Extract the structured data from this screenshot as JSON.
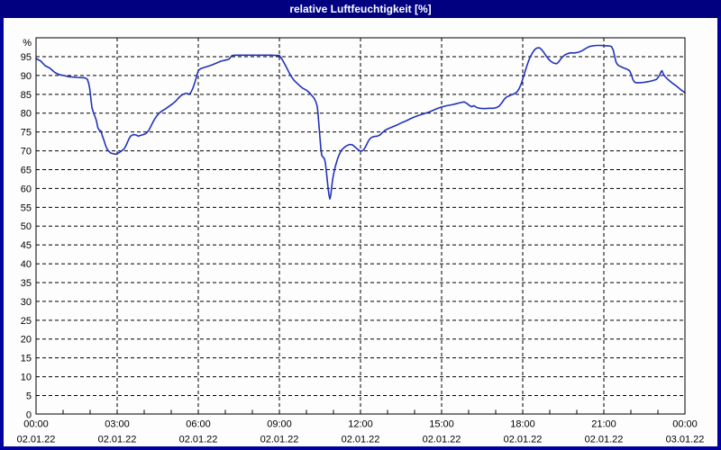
{
  "window": {
    "title": "relative Luftfeuchtigkeit [%]"
  },
  "colors": {
    "titlebar": "#000080",
    "frame": "#0000a0",
    "chart_background": "#fdfdfd",
    "plot_border": "#000000",
    "gridline": "#000000",
    "tick_label": "#000000",
    "title_text": "#ffffff",
    "series_line": "#2233bb"
  },
  "chart_data": {
    "type": "line",
    "title": "relative Luftfeuchtigkeit [%]",
    "ylabel": "%",
    "xlabel": "",
    "ylim": [
      0,
      100
    ],
    "grid": "dashed",
    "legend": "none",
    "y_ticks": [
      95,
      90,
      85,
      80,
      75,
      70,
      65,
      60,
      55,
      50,
      45,
      40,
      35,
      30,
      25,
      20,
      15,
      10,
      5,
      0
    ],
    "x_ticks": [
      {
        "time": "00:00",
        "date": "02.01.22"
      },
      {
        "time": "03:00",
        "date": "02.01.22"
      },
      {
        "time": "06:00",
        "date": "02.01.22"
      },
      {
        "time": "09:00",
        "date": "02.01.22"
      },
      {
        "time": "12:00",
        "date": "02.01.22"
      },
      {
        "time": "15:00",
        "date": "02.01.22"
      },
      {
        "time": "18:00",
        "date": "02.01.22"
      },
      {
        "time": "21:00",
        "date": "02.01.22"
      },
      {
        "time": "00:00",
        "date": "03.01.22"
      }
    ],
    "x_unit": "minutes since 00:00 02.01.22",
    "x_range_minutes": [
      0,
      1440
    ],
    "series": [
      {
        "name": "relative Luftfeuchtigkeit",
        "unit": "%",
        "color": "#2233bb",
        "points": [
          [
            0,
            94.5
          ],
          [
            10,
            93.9
          ],
          [
            20,
            92.6
          ],
          [
            30,
            92.0
          ],
          [
            42,
            90.8
          ],
          [
            52,
            90.2
          ],
          [
            62,
            90.0
          ],
          [
            72,
            89.7
          ],
          [
            90,
            89.5
          ],
          [
            108,
            89.4
          ],
          [
            114,
            89.0
          ],
          [
            117,
            87.8
          ],
          [
            119,
            86.6
          ],
          [
            121,
            84.5
          ],
          [
            124,
            81.5
          ],
          [
            127,
            80.3
          ],
          [
            131,
            79.0
          ],
          [
            134,
            78.0
          ],
          [
            137,
            76.2
          ],
          [
            140,
            75.5
          ],
          [
            144,
            75.3
          ],
          [
            147,
            74.0
          ],
          [
            151,
            72.7
          ],
          [
            154,
            71.5
          ],
          [
            158,
            70.4
          ],
          [
            162,
            69.8
          ],
          [
            166,
            69.4
          ],
          [
            172,
            69.2
          ],
          [
            178,
            69.1
          ],
          [
            184,
            69.5
          ],
          [
            190,
            70.0
          ],
          [
            196,
            70.6
          ],
          [
            200,
            71.5
          ],
          [
            204,
            72.6
          ],
          [
            207,
            73.4
          ],
          [
            211,
            74.0
          ],
          [
            216,
            74.3
          ],
          [
            222,
            74.2
          ],
          [
            227,
            73.9
          ],
          [
            232,
            74.1
          ],
          [
            238,
            74.3
          ],
          [
            244,
            74.6
          ],
          [
            250,
            75.4
          ],
          [
            256,
            76.8
          ],
          [
            262,
            78.2
          ],
          [
            268,
            79.3
          ],
          [
            274,
            80.1
          ],
          [
            281,
            80.7
          ],
          [
            288,
            81.2
          ],
          [
            295,
            81.8
          ],
          [
            302,
            82.4
          ],
          [
            309,
            83.1
          ],
          [
            316,
            84.0
          ],
          [
            322,
            84.7
          ],
          [
            328,
            85.1
          ],
          [
            334,
            85.3
          ],
          [
            339,
            85.0
          ],
          [
            343,
            85.4
          ],
          [
            348,
            86.6
          ],
          [
            352,
            88.0
          ],
          [
            356,
            89.6
          ],
          [
            360,
            91.3
          ],
          [
            365,
            91.8
          ],
          [
            372,
            92.1
          ],
          [
            380,
            92.4
          ],
          [
            390,
            92.8
          ],
          [
            400,
            93.3
          ],
          [
            410,
            93.8
          ],
          [
            420,
            94.1
          ],
          [
            428,
            94.3
          ],
          [
            432,
            94.9
          ],
          [
            435,
            95.3
          ],
          [
            442,
            95.4
          ],
          [
            480,
            95.4
          ],
          [
            520,
            95.4
          ],
          [
            540,
            95.3
          ],
          [
            546,
            94.3
          ],
          [
            551,
            93.2
          ],
          [
            556,
            92.1
          ],
          [
            561,
            90.9
          ],
          [
            566,
            89.8
          ],
          [
            572,
            88.8
          ],
          [
            578,
            88.1
          ],
          [
            585,
            87.3
          ],
          [
            592,
            86.6
          ],
          [
            600,
            86.1
          ],
          [
            606,
            85.5
          ],
          [
            612,
            84.7
          ],
          [
            617,
            84.0
          ],
          [
            621,
            83.0
          ],
          [
            624,
            81.8
          ],
          [
            626,
            79.5
          ],
          [
            628,
            76.5
          ],
          [
            630,
            73.5
          ],
          [
            632,
            70.6
          ],
          [
            634,
            68.8
          ],
          [
            637,
            68.3
          ],
          [
            640,
            67.9
          ],
          [
            642,
            66.8
          ],
          [
            644,
            64.8
          ],
          [
            646,
            62.5
          ],
          [
            648,
            60.2
          ],
          [
            650,
            58.3
          ],
          [
            652,
            57.2
          ],
          [
            654,
            58.2
          ],
          [
            656,
            60.3
          ],
          [
            658,
            62.3
          ],
          [
            661,
            64.2
          ],
          [
            664,
            65.8
          ],
          [
            667,
            67.0
          ],
          [
            670,
            68.2
          ],
          [
            674,
            69.3
          ],
          [
            678,
            70.2
          ],
          [
            682,
            70.7
          ],
          [
            687,
            71.2
          ],
          [
            692,
            71.5
          ],
          [
            697,
            71.7
          ],
          [
            702,
            71.6
          ],
          [
            707,
            71.1
          ],
          [
            712,
            70.6
          ],
          [
            717,
            70.1
          ],
          [
            721,
            69.9
          ],
          [
            725,
            70.1
          ],
          [
            729,
            70.6
          ],
          [
            733,
            71.5
          ],
          [
            737,
            72.5
          ],
          [
            741,
            73.2
          ],
          [
            745,
            73.6
          ],
          [
            750,
            73.8
          ],
          [
            757,
            73.9
          ],
          [
            763,
            74.2
          ],
          [
            769,
            74.9
          ],
          [
            775,
            75.5
          ],
          [
            782,
            75.9
          ],
          [
            792,
            76.4
          ],
          [
            802,
            76.9
          ],
          [
            812,
            77.5
          ],
          [
            822,
            78.0
          ],
          [
            832,
            78.6
          ],
          [
            842,
            79.1
          ],
          [
            852,
            79.5
          ],
          [
            862,
            79.9
          ],
          [
            872,
            80.3
          ],
          [
            882,
            80.8
          ],
          [
            892,
            81.3
          ],
          [
            902,
            81.7
          ],
          [
            912,
            82.0
          ],
          [
            922,
            82.2
          ],
          [
            932,
            82.5
          ],
          [
            942,
            82.8
          ],
          [
            950,
            83.0
          ],
          [
            956,
            82.6
          ],
          [
            962,
            82.0
          ],
          [
            967,
            81.7
          ],
          [
            972,
            82.0
          ],
          [
            978,
            81.5
          ],
          [
            985,
            81.3
          ],
          [
            995,
            81.2
          ],
          [
            1005,
            81.3
          ],
          [
            1015,
            81.3
          ],
          [
            1022,
            81.5
          ],
          [
            1028,
            81.9
          ],
          [
            1034,
            82.8
          ],
          [
            1039,
            83.7
          ],
          [
            1044,
            84.3
          ],
          [
            1050,
            84.6
          ],
          [
            1056,
            84.9
          ],
          [
            1062,
            85.2
          ],
          [
            1067,
            85.6
          ],
          [
            1072,
            86.5
          ],
          [
            1077,
            87.9
          ],
          [
            1081,
            89.4
          ],
          [
            1086,
            91.4
          ],
          [
            1091,
            93.2
          ],
          [
            1096,
            94.8
          ],
          [
            1101,
            95.9
          ],
          [
            1106,
            96.8
          ],
          [
            1111,
            97.3
          ],
          [
            1117,
            97.4
          ],
          [
            1122,
            96.9
          ],
          [
            1127,
            96.1
          ],
          [
            1132,
            95.2
          ],
          [
            1137,
            94.4
          ],
          [
            1142,
            93.8
          ],
          [
            1147,
            93.4
          ],
          [
            1152,
            93.2
          ],
          [
            1155,
            93.1
          ],
          [
            1159,
            93.5
          ],
          [
            1164,
            94.3
          ],
          [
            1169,
            95.0
          ],
          [
            1174,
            95.5
          ],
          [
            1179,
            95.8
          ],
          [
            1185,
            96.0
          ],
          [
            1195,
            96.0
          ],
          [
            1204,
            96.2
          ],
          [
            1212,
            96.6
          ],
          [
            1220,
            97.2
          ],
          [
            1228,
            97.7
          ],
          [
            1236,
            97.9
          ],
          [
            1244,
            98.0
          ],
          [
            1254,
            98.0
          ],
          [
            1262,
            97.9
          ],
          [
            1270,
            97.9
          ],
          [
            1277,
            97.7
          ],
          [
            1281,
            96.7
          ],
          [
            1284,
            95.1
          ],
          [
            1287,
            93.6
          ],
          [
            1291,
            92.8
          ],
          [
            1297,
            92.4
          ],
          [
            1304,
            92.0
          ],
          [
            1311,
            91.7
          ],
          [
            1317,
            91.3
          ],
          [
            1321,
            90.3
          ],
          [
            1324,
            89.1
          ],
          [
            1327,
            88.4
          ],
          [
            1331,
            88.1
          ],
          [
            1340,
            88.1
          ],
          [
            1350,
            88.2
          ],
          [
            1360,
            88.4
          ],
          [
            1370,
            88.7
          ],
          [
            1377,
            89.0
          ],
          [
            1383,
            89.9
          ],
          [
            1387,
            91.0
          ],
          [
            1389,
            91.3
          ],
          [
            1392,
            90.4
          ],
          [
            1396,
            89.7
          ],
          [
            1401,
            89.1
          ],
          [
            1407,
            88.5
          ],
          [
            1413,
            87.9
          ],
          [
            1419,
            87.4
          ],
          [
            1425,
            86.8
          ],
          [
            1431,
            86.2
          ],
          [
            1436,
            85.8
          ],
          [
            1440,
            85.4
          ]
        ]
      }
    ]
  }
}
